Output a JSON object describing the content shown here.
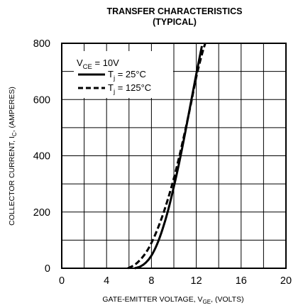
{
  "chart_data": {
    "type": "line",
    "title": "TRANSFER CHARACTERISTICS",
    "subtitle": "(TYPICAL)",
    "xlabel": {
      "main": "GATE-EMITTER VOLTAGE, V",
      "sub": "GE",
      "tail": ", (VOLTS)"
    },
    "ylabel": {
      "main": "COLLECTOR CURRENT, I",
      "sub": "C",
      "tail": ", (AMPERES)"
    },
    "xlim": [
      0,
      20
    ],
    "ylim": [
      0,
      800
    ],
    "xticks": [
      0,
      4,
      8,
      12,
      16,
      20
    ],
    "yticks": [
      0,
      200,
      400,
      600,
      800
    ],
    "x_gridlines": [
      2,
      4,
      6,
      8,
      10,
      12,
      14,
      16,
      18
    ],
    "y_gridlines": [
      100,
      200,
      300,
      400,
      500,
      600,
      700
    ],
    "grid": true,
    "legend": {
      "position": "top-left",
      "header_main": "V",
      "header_sub": "CE",
      "header_tail": " = 10V"
    },
    "series": [
      {
        "name_main": "T",
        "name_sub": "j",
        "name_tail": " = 25°C",
        "style": "solid",
        "x": [
          6.5,
          7.0,
          7.5,
          8.0,
          8.5,
          9.0,
          9.5,
          10.0,
          10.5,
          11.0,
          11.5,
          12.0,
          12.5
        ],
        "y": [
          0,
          6,
          20,
          45,
          85,
          140,
          208,
          290,
          380,
          480,
          585,
          690,
          790
        ]
      },
      {
        "name_main": "T",
        "name_sub": "j",
        "name_tail": " = 125°C",
        "style": "dashed",
        "x": [
          5.9,
          6.5,
          7.0,
          7.5,
          8.0,
          8.5,
          9.0,
          9.5,
          10.0,
          10.5,
          11.0,
          11.5,
          12.0,
          12.5,
          12.8
        ],
        "y": [
          0,
          12,
          30,
          55,
          90,
          135,
          188,
          250,
          320,
          400,
          488,
          580,
          680,
          760,
          800
        ]
      }
    ]
  }
}
